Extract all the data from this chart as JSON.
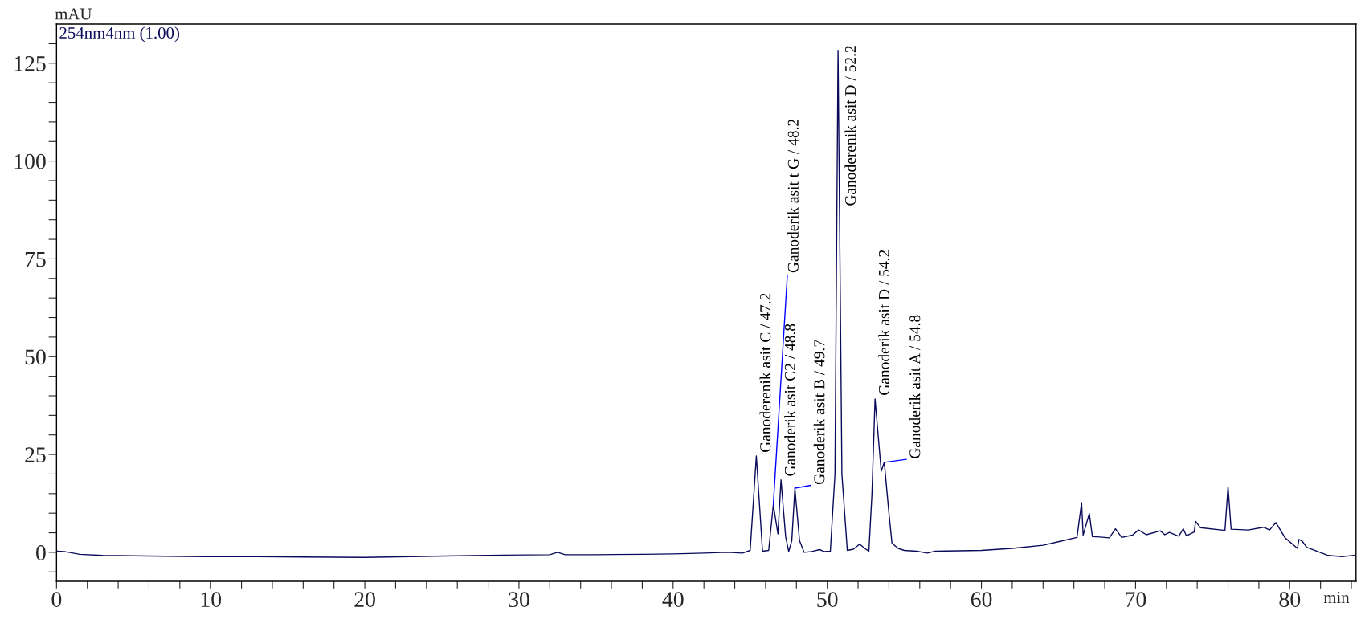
{
  "chart_data": {
    "type": "line",
    "xlabel": "min",
    "ylabel": "mAU",
    "xlim": [
      0,
      84.3
    ],
    "ylim": [
      -7.4,
      135.0
    ],
    "xticks": [
      0,
      {
        "value": 2,
        "label": null
      },
      {
        "value": 4,
        "label": null
      },
      {
        "value": 6,
        "label": null
      },
      {
        "value": 8,
        "label": null
      },
      10,
      {
        "value": 12,
        "label": null
      },
      {
        "value": 14,
        "label": null
      },
      {
        "value": 16,
        "label": null
      },
      {
        "value": 18,
        "label": null
      },
      20,
      {
        "value": 22,
        "label": null
      },
      {
        "value": 24,
        "label": null
      },
      {
        "value": 26,
        "label": null
      },
      {
        "value": 28,
        "label": null
      },
      30,
      {
        "value": 32,
        "label": null
      },
      {
        "value": 34,
        "label": null
      },
      {
        "value": 36,
        "label": null
      },
      {
        "value": 38,
        "label": null
      },
      40,
      {
        "value": 42,
        "label": null
      },
      {
        "value": 44,
        "label": null
      },
      {
        "value": 46,
        "label": null
      },
      {
        "value": 48,
        "label": null
      },
      50,
      {
        "value": 52,
        "label": null
      },
      {
        "value": 54,
        "label": null
      },
      {
        "value": 56,
        "label": null
      },
      {
        "value": 58,
        "label": null
      },
      60,
      {
        "value": 62,
        "label": null
      },
      {
        "value": 64,
        "label": null
      },
      {
        "value": 66,
        "label": null
      },
      {
        "value": 68,
        "label": null
      },
      70,
      {
        "value": 72,
        "label": null
      },
      {
        "value": 74,
        "label": null
      },
      {
        "value": 76,
        "label": null
      },
      {
        "value": 78,
        "label": null
      },
      80,
      {
        "value": 82,
        "label": null
      },
      {
        "value": 84,
        "label": null
      }
    ],
    "yticks": [
      {
        "value": -5,
        "label": null
      },
      0,
      {
        "value": 5,
        "label": null
      },
      {
        "value": 10,
        "label": null
      },
      {
        "value": 15,
        "label": null
      },
      {
        "value": 20,
        "label": null
      },
      25,
      {
        "value": 30,
        "label": null
      },
      {
        "value": 35,
        "label": null
      },
      {
        "value": 40,
        "label": null
      },
      {
        "value": 45,
        "label": null
      },
      50,
      {
        "value": 55,
        "label": null
      },
      {
        "value": 60,
        "label": null
      },
      {
        "value": 65,
        "label": null
      },
      {
        "value": 70,
        "label": null
      },
      75,
      {
        "value": 80,
        "label": null
      },
      {
        "value": 85,
        "label": null
      },
      {
        "value": 90,
        "label": null
      },
      {
        "value": 95,
        "label": null
      },
      100,
      {
        "value": 105,
        "label": null
      },
      {
        "value": 110,
        "label": null
      },
      {
        "value": 115,
        "label": null
      },
      {
        "value": 120,
        "label": null
      },
      125,
      {
        "value": 130,
        "label": null
      }
    ],
    "grid": false,
    "legend": "top left",
    "marker": "none",
    "line_style": "solid",
    "series": [
      {
        "name": "254nm4nm (1.00)",
        "color": "#0a0a5a",
        "x": [
          0,
          0.5,
          1.5,
          3,
          5,
          7,
          10,
          13,
          16,
          20,
          23,
          26,
          29,
          32,
          32.5,
          33,
          35,
          38,
          40,
          42,
          43.5,
          44.5,
          45.0,
          45.4,
          45.8,
          46.2,
          46.5,
          46.8,
          47.0,
          47.3,
          47.5,
          47.7,
          47.9,
          48.2,
          48.5,
          49.0,
          49.5,
          49.8,
          50.2,
          50.5,
          50.7,
          50.95,
          51.3,
          51.7,
          52.1,
          52.5,
          52.7,
          52.9,
          53.1,
          53.3,
          53.5,
          53.7,
          54.0,
          54.2,
          54.6,
          55.0,
          55.8,
          56.5,
          57,
          60,
          62,
          64,
          65.1,
          66.2,
          66.5,
          66.6,
          67.0,
          67.2,
          67.7,
          68.3,
          68.7,
          69.1,
          69.8,
          70.2,
          70.7,
          71.6,
          71.9,
          72.2,
          72.8,
          73.1,
          73.3,
          73.8,
          73.9,
          74.2,
          75.8,
          76.0,
          76.2,
          77.3,
          78.3,
          78.7,
          79.1,
          79.7,
          80.5,
          80.6,
          80.8,
          81.1,
          82.5,
          83.4,
          84.3
        ],
        "values": [
          0.3,
          0.2,
          -0.5,
          -0.8,
          -0.9,
          -1.0,
          -1.1,
          -1.1,
          -1.2,
          -1.3,
          -1.1,
          -0.9,
          -0.7,
          -0.6,
          0.0,
          -0.6,
          -0.6,
          -0.5,
          -0.4,
          -0.2,
          0.0,
          -0.2,
          0.5,
          24.6,
          0.3,
          0.5,
          12.1,
          4.7,
          18.5,
          4.0,
          0.2,
          3.0,
          16.4,
          3.0,
          0.0,
          0.2,
          0.7,
          0.2,
          0.3,
          20.0,
          128.3,
          20.0,
          0.5,
          0.8,
          2.1,
          0.8,
          0.3,
          15.0,
          39.2,
          30.0,
          20.7,
          23.0,
          10.0,
          2.3,
          1.0,
          0.5,
          0.3,
          -0.2,
          0.3,
          0.5,
          1.0,
          1.8,
          2.8,
          3.8,
          12.7,
          4.4,
          9.9,
          4.0,
          3.9,
          3.7,
          6.0,
          3.8,
          4.4,
          5.7,
          4.5,
          5.5,
          4.5,
          5.1,
          4.1,
          6.0,
          4.2,
          5.2,
          7.9,
          6.3,
          5.6,
          16.8,
          5.9,
          5.7,
          6.4,
          5.7,
          7.6,
          3.7,
          1.0,
          3.3,
          2.9,
          1.3,
          -0.8,
          -1.1,
          -0.7
        ]
      }
    ],
    "annotations": [
      {
        "text": "Ganoderenik asit C / 47.2",
        "x": 45.4,
        "y": 24.6
      },
      {
        "text": "Ganoderik asit t G / 48.2",
        "x": 46.5,
        "y": 12.1
      },
      {
        "text": "Ganoderik asit C2 / 48.8",
        "x": 47.0,
        "y": 18.5
      },
      {
        "text": "Ganoderik asit B / 49.7",
        "x": 47.9,
        "y": 16.4
      },
      {
        "text": "Ganoderenik asit D / 52.2",
        "x": 50.7,
        "y": 128.3
      },
      {
        "text": "Ganoderik asit D / 54.2",
        "x": 53.1,
        "y": 39.2
      },
      {
        "text": "Ganoderik asit A / 54.8",
        "x": 53.7,
        "y": 23.0
      }
    ]
  }
}
